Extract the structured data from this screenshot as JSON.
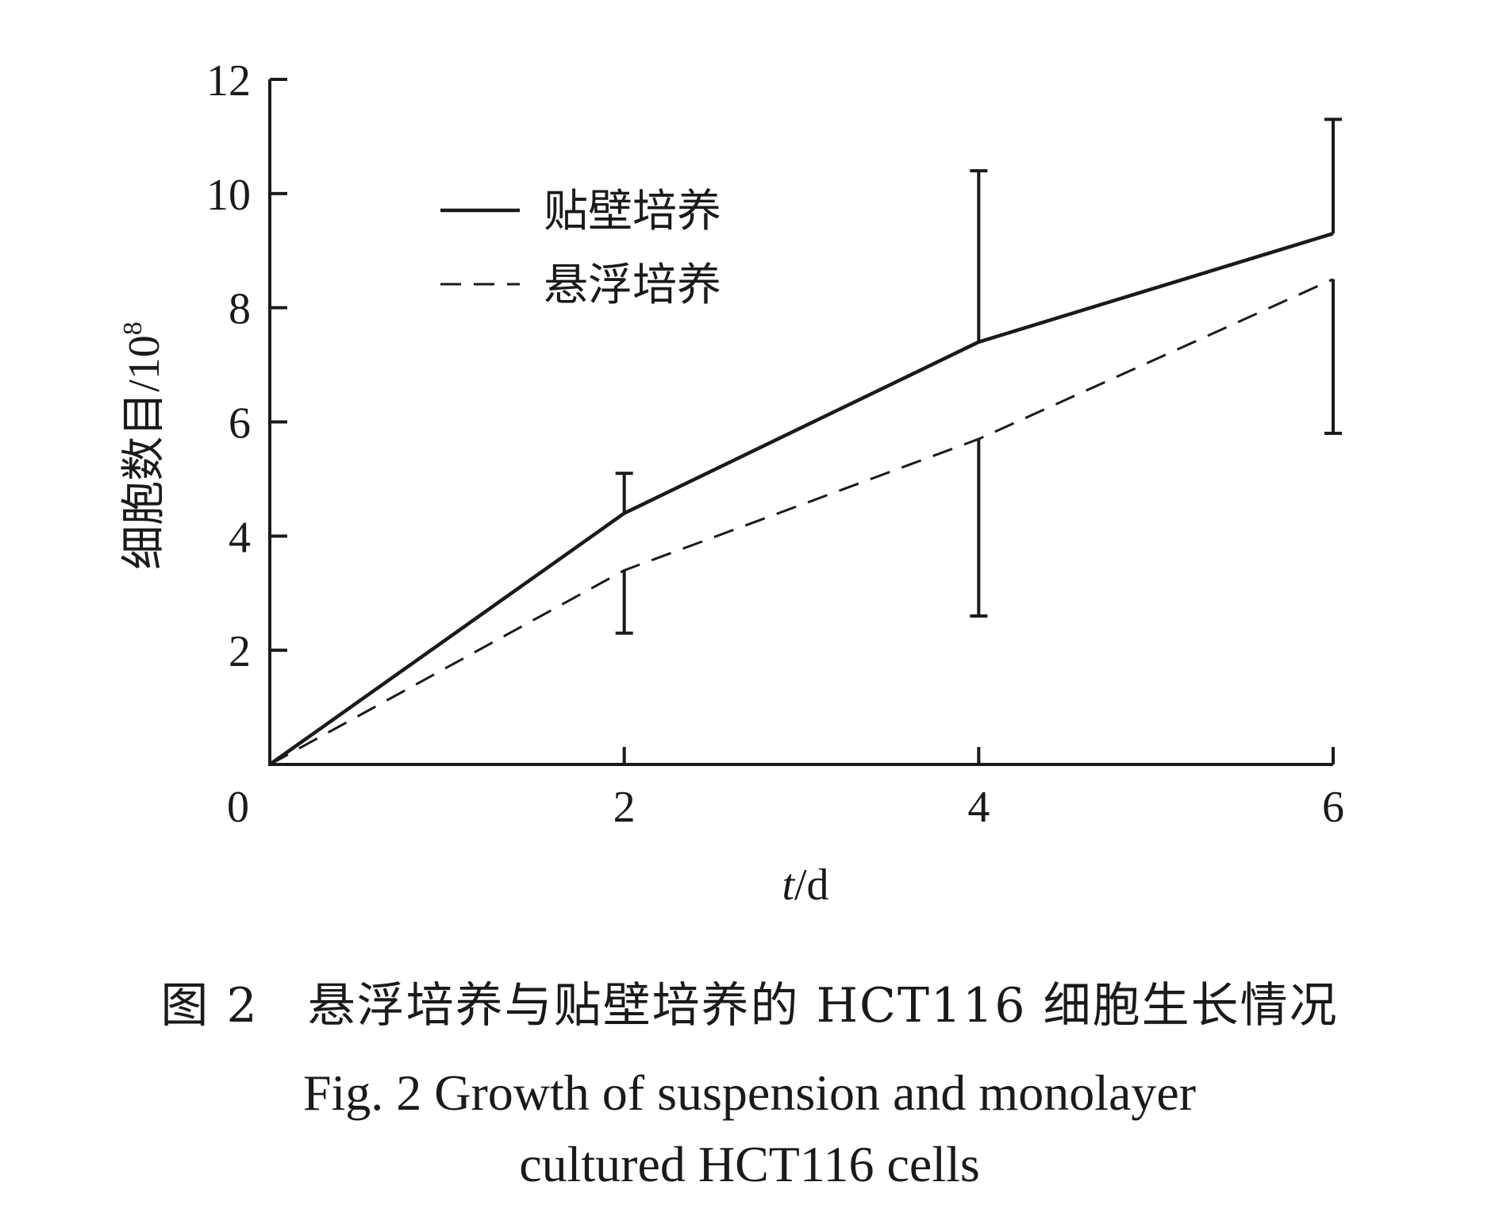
{
  "chart_data": {
    "type": "line",
    "x": [
      0,
      2,
      4,
      6
    ],
    "xticks": [
      "0",
      "2",
      "4",
      "6"
    ],
    "yticks": [
      "2",
      "4",
      "6",
      "8",
      "10",
      "12"
    ],
    "xlim": [
      0,
      6
    ],
    "ylim": [
      0,
      12
    ],
    "xlabel": "t/d",
    "xlabel_italic": "t",
    "xlabel_rest": "/d",
    "ylabel": "细胞数目/10⁸",
    "ylabel_base": "细胞数目/10",
    "ylabel_exp": "8",
    "series": [
      {
        "name": "贴壁培养",
        "style": "solid",
        "values": [
          0,
          4.4,
          7.4,
          9.3
        ],
        "error_bars": [
          null,
          [
            4.4,
            5.1
          ],
          [
            7.4,
            10.4
          ],
          [
            9.3,
            11.3
          ]
        ]
      },
      {
        "name": "悬浮培养",
        "style": "dashed",
        "values": [
          0,
          3.4,
          5.7,
          8.5
        ],
        "error_bars": [
          null,
          [
            2.3,
            3.4
          ],
          [
            2.6,
            5.7
          ],
          [
            5.8,
            8.5
          ]
        ]
      }
    ],
    "legend_position": "top-left",
    "grid": false,
    "line_color": "#1a1a1a"
  },
  "caption": {
    "cn": "图 2　悬浮培养与贴壁培养的 HCT116 细胞生长情况",
    "en_line1": "Fig. 2  Growth of suspension and monolayer",
    "en_line2": "cultured HCT116 cells"
  }
}
